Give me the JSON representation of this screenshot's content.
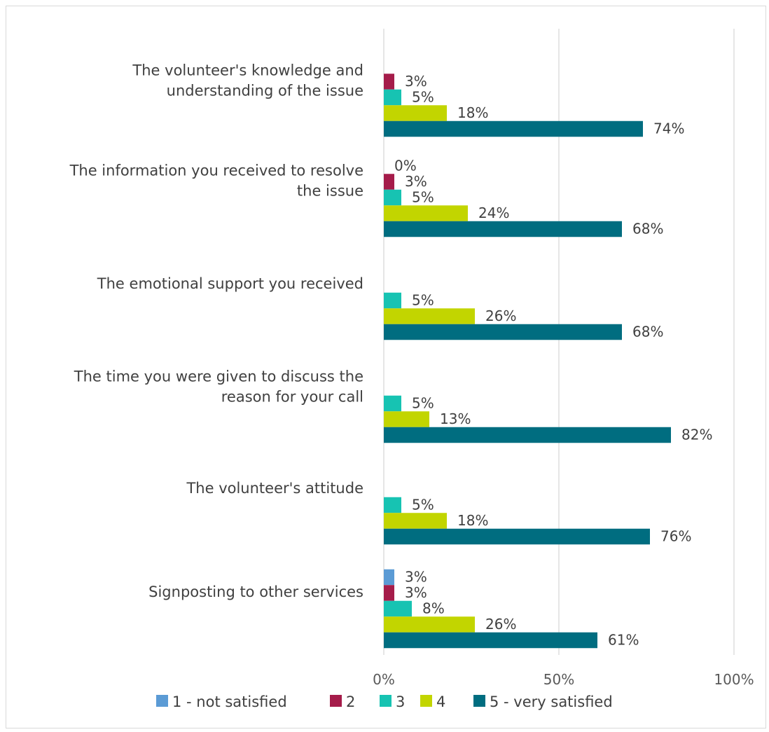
{
  "chart_data": {
    "type": "bar",
    "orientation": "horizontal",
    "categories": [
      [
        "The volunteer's knowledge and",
        "understanding of the issue"
      ],
      [
        "The information you received to resolve",
        "the issue"
      ],
      [
        "The emotional support you received"
      ],
      [
        "The time you were given to discuss the",
        "reason for your call"
      ],
      [
        "The volunteer's attitude"
      ],
      [
        "Signposting to other services"
      ]
    ],
    "series": [
      {
        "name": "1 - not satisfied",
        "color": "#5b9bd5",
        "values": [
          null,
          null,
          null,
          null,
          null,
          3
        ]
      },
      {
        "name": "2",
        "color": "#a51c4a",
        "values": [
          3,
          3,
          null,
          null,
          null,
          3
        ]
      },
      {
        "name": "3",
        "color": "#17c3b2",
        "values": [
          5,
          5,
          5,
          5,
          5,
          8
        ]
      },
      {
        "name": "4",
        "color": "#c2d500",
        "values": [
          18,
          24,
          26,
          13,
          18,
          26
        ]
      },
      {
        "name": "5 - very satisfied",
        "color": "#006d80",
        "values": [
          74,
          68,
          68,
          82,
          76,
          61
        ]
      }
    ],
    "zero_labels": [
      {
        "category": 1,
        "series": 0,
        "label": "0%"
      }
    ],
    "xlim": [
      0,
      100
    ],
    "xticks": [
      0,
      50,
      100
    ],
    "tick_suffix": "%",
    "value_suffix": "%",
    "grid": true,
    "legend_position": "bottom",
    "title": "",
    "xlabel": "",
    "ylabel": ""
  }
}
